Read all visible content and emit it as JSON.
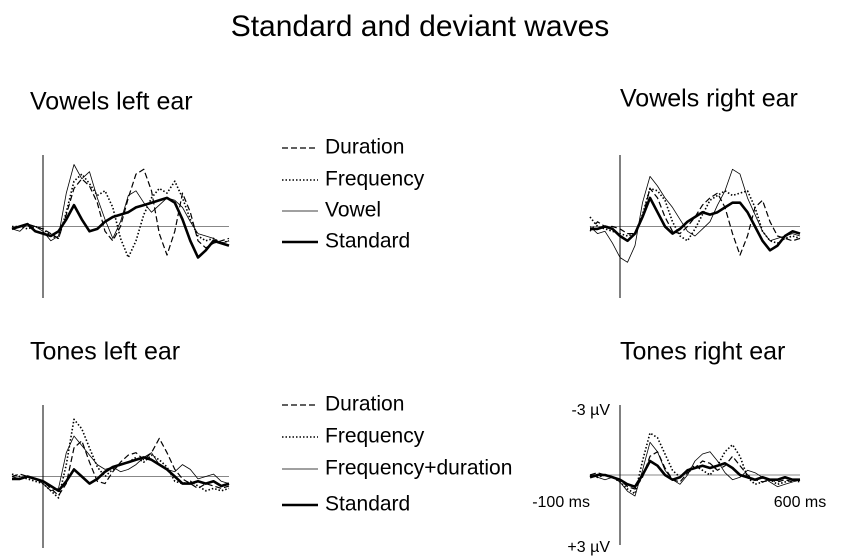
{
  "title": "Standard and deviant waves",
  "chart_data": [
    {
      "type": "line",
      "title": "Vowels left ear",
      "legend": true,
      "y_inverted": true,
      "xlim": [
        -100,
        600
      ],
      "ylim": [
        -3,
        3
      ],
      "x": [
        -100,
        -75,
        -50,
        -25,
        0,
        25,
        50,
        75,
        100,
        125,
        150,
        175,
        200,
        225,
        250,
        275,
        300,
        325,
        350,
        375,
        400,
        425,
        450,
        475,
        500,
        525,
        550,
        575,
        600
      ],
      "series": [
        {
          "name": "Duration",
          "color": "#000000",
          "dash": "dashed",
          "width": 1.2,
          "values": [
            0.1,
            0,
            -0.1,
            0,
            0.1,
            0.3,
            0.5,
            -0.5,
            -1.6,
            -2.0,
            -1.7,
            -1.0,
            0.2,
            0.6,
            0,
            -1.2,
            -2.2,
            -2.4,
            -1.5,
            0.3,
            1.2,
            0.2,
            -1.4,
            -0.6,
            0.6,
            0.9,
            0.7,
            0.6,
            0.5
          ]
        },
        {
          "name": "Frequency",
          "color": "#000000",
          "dash": "dotted",
          "width": 1.6,
          "values": [
            0,
            0,
            0.1,
            0,
            0.1,
            0.4,
            0.5,
            -0.6,
            -1.9,
            -2.2,
            -1.8,
            -1.3,
            -1.5,
            -0.8,
            0.5,
            1.3,
            0.6,
            -0.5,
            -1.2,
            -1.6,
            -1.4,
            -1.9,
            -1.2,
            -0.3,
            0.4,
            0.6,
            0.5,
            0.7,
            0.6
          ]
        },
        {
          "name": "Vowel",
          "color": "#000000",
          "dash": "solid",
          "width": 0.8,
          "values": [
            0.1,
            0.2,
            -0.1,
            0,
            0.2,
            0.6,
            0.4,
            -1.4,
            -2.6,
            -2.0,
            -2.3,
            -1.2,
            -0.3,
            0.5,
            -0.2,
            -1.3,
            -1.5,
            -1.0,
            -0.6,
            -0.9,
            -1.2,
            -1.1,
            -0.8,
            -0.2,
            0.3,
            0.4,
            0.5,
            0.7,
            0.6
          ]
        },
        {
          "name": "Standard",
          "color": "#000000",
          "dash": "solid",
          "width": 2.6,
          "values": [
            0.1,
            0,
            -0.1,
            0.2,
            0.3,
            0.4,
            0.2,
            -0.3,
            -0.9,
            -0.3,
            0.2,
            0.1,
            -0.2,
            -0.4,
            -0.5,
            -0.6,
            -0.8,
            -0.9,
            -1.0,
            -1.1,
            -1.2,
            -1.0,
            -0.3,
            0.6,
            1.3,
            1.0,
            0.6,
            0.7,
            0.8
          ]
        }
      ]
    },
    {
      "type": "line",
      "title": "Vowels right ear",
      "legend": false,
      "y_inverted": true,
      "xlim": [
        -100,
        600
      ],
      "ylim": [
        -3,
        3
      ],
      "x": [
        -100,
        -75,
        -50,
        -25,
        0,
        25,
        50,
        75,
        100,
        125,
        150,
        175,
        200,
        225,
        250,
        275,
        300,
        325,
        350,
        375,
        400,
        425,
        450,
        475,
        500,
        525,
        550,
        575,
        600
      ],
      "series": [
        {
          "color": "#000000",
          "dash": "dashed",
          "width": 1.2,
          "values": [
            0.2,
            -0.2,
            0,
            0,
            0.1,
            0.3,
            0.3,
            -0.4,
            -1.6,
            -1.2,
            -0.4,
            0.2,
            0.3,
            0,
            -0.4,
            -0.9,
            -1.2,
            -1.4,
            -0.8,
            0.3,
            1.2,
            0.4,
            -0.8,
            -1.1,
            -0.2,
            0.4,
            0.5,
            0.6,
            0.5
          ]
        },
        {
          "color": "#000000",
          "dash": "dotted",
          "width": 1.6,
          "values": [
            -0.4,
            0,
            0.1,
            0.2,
            0.3,
            0.4,
            0.3,
            -0.5,
            -1.6,
            -1.5,
            -1.1,
            -0.2,
            0.4,
            0.6,
            0.1,
            -0.5,
            -1.1,
            -1.3,
            -1.5,
            -1.3,
            -1.4,
            -1.5,
            -0.8,
            0.2,
            0.6,
            0.7,
            0.5,
            0.4,
            0.5
          ]
        },
        {
          "color": "#000000",
          "dash": "solid",
          "width": 0.8,
          "values": [
            0,
            0.3,
            0.2,
            0.7,
            1.3,
            1.5,
            0.8,
            -1.0,
            -2.1,
            -1.7,
            -1.2,
            -0.8,
            -0.3,
            0.2,
            0.4,
            0.1,
            -0.2,
            -0.9,
            -1.5,
            -2.4,
            -2.2,
            -1.2,
            -0.5,
            0.2,
            0.6,
            0.5,
            0.4,
            0.3,
            0.4
          ]
        },
        {
          "color": "#000000",
          "dash": "solid",
          "width": 2.6,
          "values": [
            0.1,
            0.1,
            0,
            0.1,
            0.4,
            0.6,
            0.3,
            -0.4,
            -1.2,
            -0.6,
            0,
            0.3,
            0.1,
            -0.2,
            -0.4,
            -0.6,
            -0.5,
            -0.6,
            -0.8,
            -1.0,
            -1.0,
            -0.6,
            0,
            0.6,
            1.0,
            0.8,
            0.4,
            0.2,
            0.3
          ]
        }
      ]
    },
    {
      "type": "line",
      "title": "Tones left ear",
      "legend": true,
      "y_inverted": true,
      "xlim": [
        -100,
        600
      ],
      "ylim": [
        -3,
        3
      ],
      "x": [
        -100,
        -75,
        -50,
        -25,
        0,
        25,
        50,
        75,
        100,
        125,
        150,
        175,
        200,
        225,
        250,
        275,
        300,
        325,
        350,
        375,
        400,
        425,
        450,
        475,
        500,
        525,
        550,
        575,
        600
      ],
      "series": [
        {
          "name": "Duration",
          "color": "#000000",
          "dash": "dashed",
          "width": 1.2,
          "values": [
            0,
            -0.1,
            0,
            0.1,
            0.2,
            0.5,
            0.8,
            0.3,
            -1.2,
            -1.5,
            -0.6,
            0.2,
            0.3,
            -0.2,
            -0.6,
            -0.9,
            -1.0,
            -0.7,
            -1.0,
            -1.6,
            -1.0,
            -0.3,
            0.1,
            0.3,
            0.5,
            0.3,
            0.4,
            0.5,
            0.4
          ]
        },
        {
          "name": "Frequency",
          "color": "#000000",
          "dash": "dotted",
          "width": 1.6,
          "values": [
            -0.1,
            0,
            0.1,
            0.2,
            0.3,
            0.6,
            0.9,
            -0.5,
            -2.4,
            -2.0,
            -1.2,
            -0.4,
            0,
            -0.3,
            -0.5,
            -0.6,
            -0.8,
            -0.6,
            -0.9,
            -0.7,
            -0.4,
            0.2,
            0.3,
            0.2,
            0.4,
            0.6,
            0.5,
            0.6,
            0.5
          ]
        },
        {
          "name": "Frequency+duration",
          "color": "#000000",
          "dash": "solid",
          "width": 0.8,
          "values": [
            0,
            0.1,
            0,
            0.1,
            0.3,
            0.6,
            0.5,
            -1.0,
            -1.7,
            -1.3,
            -0.9,
            -0.5,
            -0.3,
            -0.4,
            -0.2,
            -0.3,
            -0.5,
            -0.8,
            -1.0,
            -0.5,
            -0.3,
            -0.2,
            -0.5,
            -0.3,
            0.1,
            0.0,
            -0.1,
            0.2,
            0.3
          ]
        },
        {
          "name": "Standard",
          "color": "#000000",
          "dash": "solid",
          "width": 2.6,
          "values": [
            0.1,
            0.1,
            0,
            0.1,
            0.2,
            0.4,
            0.6,
            0.2,
            -0.3,
            0,
            0.3,
            0.1,
            -0.2,
            -0.4,
            -0.5,
            -0.6,
            -0.7,
            -0.8,
            -0.7,
            -0.5,
            -0.3,
            0,
            0.3,
            0.3,
            0.2,
            0.3,
            0.2,
            0.4,
            0.3
          ]
        }
      ]
    },
    {
      "type": "line",
      "title": "Tones right ear",
      "legend": false,
      "y_inverted": true,
      "xlim": [
        -100,
        600
      ],
      "ylim": [
        -3,
        3
      ],
      "xticks": [
        {
          "value": -100,
          "label": "-100 ms"
        },
        {
          "value": 600,
          "label": "600 ms"
        }
      ],
      "yticks": [
        {
          "value": -3,
          "label": "-3 µV"
        },
        {
          "value": 3,
          "label": "+3 µV"
        }
      ],
      "x": [
        -100,
        -75,
        -50,
        -25,
        0,
        25,
        50,
        75,
        100,
        125,
        150,
        175,
        200,
        225,
        250,
        275,
        300,
        325,
        350,
        375,
        400,
        425,
        450,
        475,
        500,
        525,
        550,
        575,
        600
      ],
      "series": [
        {
          "color": "#000000",
          "dash": "dashed",
          "width": 1.2,
          "values": [
            0,
            -0.1,
            0,
            0.1,
            0.2,
            0.5,
            0.6,
            0.1,
            -0.8,
            -1.0,
            -0.3,
            0.2,
            0.3,
            -0.1,
            -0.3,
            -0.6,
            -0.5,
            -0.2,
            -0.4,
            -0.8,
            -0.4,
            0,
            0.2,
            0.3,
            0.2,
            0.3,
            0.2,
            0.3,
            0.2
          ]
        },
        {
          "color": "#000000",
          "dash": "dotted",
          "width": 1.6,
          "values": [
            0,
            0.1,
            0,
            0.1,
            0.3,
            0.6,
            0.8,
            -0.6,
            -1.8,
            -1.6,
            -0.9,
            -0.2,
            0.1,
            -0.2,
            -0.4,
            -0.2,
            0,
            -0.4,
            -1.0,
            -1.3,
            -0.8,
            0.1,
            0.4,
            0.3,
            0.2,
            0.4,
            0.3,
            0.2,
            0.3
          ]
        },
        {
          "color": "#000000",
          "dash": "solid",
          "width": 0.8,
          "values": [
            0,
            0.1,
            0.2,
            0.1,
            0.3,
            0.7,
            0.9,
            -0.2,
            -1.4,
            -1.0,
            -0.2,
            0.2,
            0.4,
            0,
            -0.6,
            -0.9,
            -1.0,
            -0.6,
            -0.1,
            0.2,
            0.1,
            -0.2,
            -0.1,
            0.1,
            0.3,
            0.5,
            0.4,
            0.3,
            0.2
          ]
        },
        {
          "color": "#000000",
          "dash": "solid",
          "width": 2.6,
          "values": [
            0.1,
            0,
            0,
            0.1,
            0.2,
            0.4,
            0.5,
            0,
            -0.6,
            -0.4,
            0,
            0.2,
            0.1,
            -0.2,
            -0.3,
            -0.4,
            -0.3,
            -0.4,
            -0.5,
            -0.3,
            0,
            0.1,
            0.2,
            0.1,
            0.2,
            0.2,
            0.1,
            0.2,
            0.2
          ]
        }
      ]
    }
  ]
}
